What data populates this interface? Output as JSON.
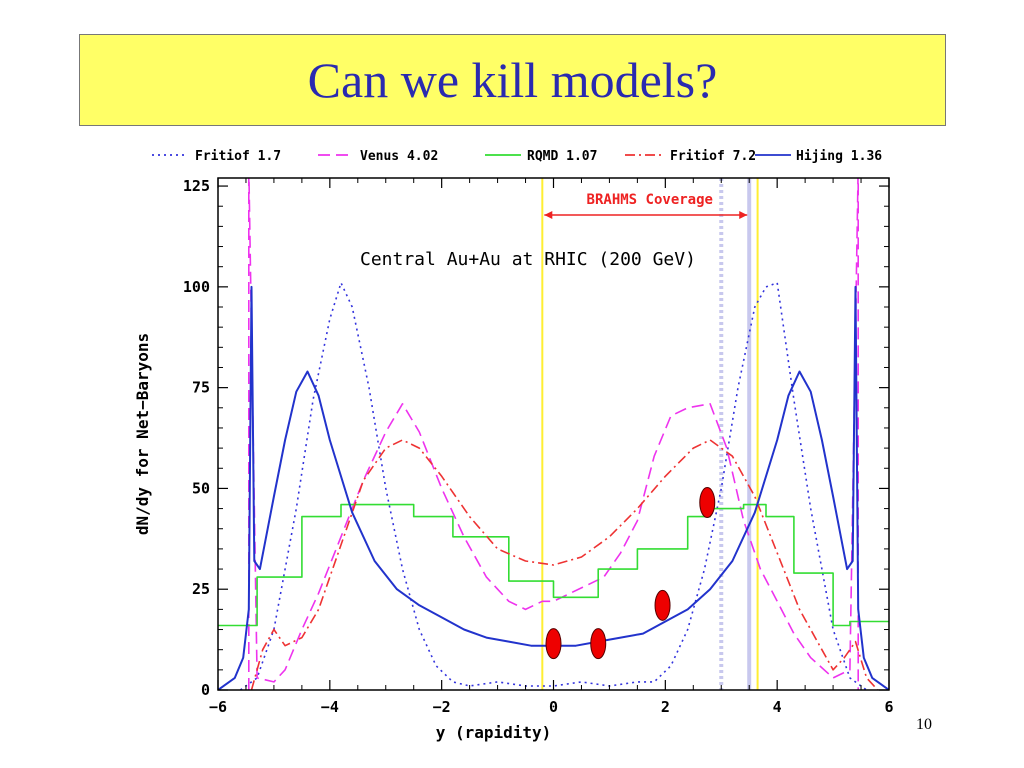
{
  "slide": {
    "title": "Can we kill models?",
    "page_number": "10"
  },
  "chart_data": {
    "type": "line",
    "title": "",
    "annotation": "Central Au+Au at RHIC (200 GeV)",
    "coverage_label": "BRAHMS Coverage",
    "coverage_range": [
      -0.2,
      3.5
    ],
    "xlabel": "y  (rapidity)",
    "ylabel": "dN/dy for Net−Baryons",
    "xlim": [
      -6,
      6
    ],
    "ylim": [
      0,
      127
    ],
    "xticks": [
      -6,
      -4,
      -2,
      0,
      2,
      4,
      6
    ],
    "xtick_labels": [
      "−6",
      "−4",
      "−2",
      "0",
      "2",
      "4",
      "6"
    ],
    "yticks": [
      0,
      25,
      50,
      75,
      100,
      125
    ],
    "ytick_labels": [
      "0",
      "25",
      "50",
      "75",
      "100",
      "125"
    ],
    "grid": false,
    "legend_position": "top",
    "series": [
      {
        "name": "Fritiof 1.7",
        "style": "dotted",
        "color": "#3333dd",
        "points": [
          [
            -5.6,
            0
          ],
          [
            -5.3,
            3
          ],
          [
            -5.0,
            15
          ],
          [
            -4.6,
            45
          ],
          [
            -4.3,
            72
          ],
          [
            -4.0,
            92
          ],
          [
            -3.8,
            101
          ],
          [
            -3.6,
            95
          ],
          [
            -3.3,
            75
          ],
          [
            -3.0,
            50
          ],
          [
            -2.7,
            30
          ],
          [
            -2.4,
            15
          ],
          [
            -2.1,
            6
          ],
          [
            -1.8,
            2
          ],
          [
            -1.5,
            1
          ],
          [
            -1.0,
            2
          ],
          [
            -0.5,
            1
          ],
          [
            0,
            1
          ],
          [
            0.5,
            2
          ],
          [
            1.0,
            1
          ],
          [
            1.5,
            2
          ],
          [
            1.8,
            2
          ],
          [
            2.1,
            6
          ],
          [
            2.4,
            15
          ],
          [
            2.7,
            30
          ],
          [
            3.0,
            50
          ],
          [
            3.3,
            75
          ],
          [
            3.6,
            95
          ],
          [
            3.8,
            100
          ],
          [
            4.0,
            101
          ],
          [
            4.3,
            72
          ],
          [
            4.6,
            45
          ],
          [
            5.0,
            15
          ],
          [
            5.3,
            3
          ],
          [
            5.6,
            0
          ]
        ]
      },
      {
        "name": "Venus 4.02",
        "style": "dashed",
        "color": "#ee33ee",
        "points": [
          [
            -5.45,
            0
          ],
          [
            -5.45,
            130
          ],
          [
            -5.3,
            3
          ],
          [
            -5.0,
            2
          ],
          [
            -4.8,
            5
          ],
          [
            -4.5,
            15
          ],
          [
            -4.2,
            24
          ],
          [
            -3.8,
            38
          ],
          [
            -3.4,
            52
          ],
          [
            -3.0,
            64
          ],
          [
            -2.7,
            71
          ],
          [
            -2.4,
            64
          ],
          [
            -2.0,
            50
          ],
          [
            -1.6,
            38
          ],
          [
            -1.2,
            28
          ],
          [
            -0.8,
            22
          ],
          [
            -0.5,
            20
          ],
          [
            -0.2,
            22
          ],
          [
            0,
            22
          ],
          [
            0.3,
            24
          ],
          [
            0.6,
            26
          ],
          [
            0.9,
            28
          ],
          [
            1.2,
            34
          ],
          [
            1.5,
            42
          ],
          [
            1.8,
            58
          ],
          [
            2.1,
            68
          ],
          [
            2.4,
            70
          ],
          [
            2.8,
            71
          ],
          [
            3.1,
            60
          ],
          [
            3.4,
            42
          ],
          [
            3.7,
            30
          ],
          [
            4.0,
            22
          ],
          [
            4.3,
            14
          ],
          [
            4.6,
            8
          ],
          [
            5.0,
            3
          ],
          [
            5.3,
            5
          ],
          [
            5.45,
            130
          ],
          [
            5.45,
            0
          ]
        ]
      },
      {
        "name": "RQMD 1.07",
        "style": "step",
        "color": "#33dd33",
        "points": [
          [
            -6,
            16
          ],
          [
            -5.3,
            16
          ],
          [
            -5.3,
            28
          ],
          [
            -4.5,
            28
          ],
          [
            -4.5,
            43
          ],
          [
            -3.8,
            43
          ],
          [
            -3.8,
            46
          ],
          [
            -2.5,
            46
          ],
          [
            -2.5,
            43
          ],
          [
            -1.8,
            43
          ],
          [
            -1.8,
            38
          ],
          [
            -0.8,
            38
          ],
          [
            -0.8,
            27
          ],
          [
            0,
            27
          ],
          [
            0,
            23
          ],
          [
            0.8,
            23
          ],
          [
            0.8,
            30
          ],
          [
            1.5,
            30
          ],
          [
            1.5,
            35
          ],
          [
            2.4,
            35
          ],
          [
            2.4,
            43
          ],
          [
            2.8,
            43
          ],
          [
            2.8,
            45
          ],
          [
            3.4,
            45
          ],
          [
            3.4,
            46
          ],
          [
            3.8,
            46
          ],
          [
            3.8,
            43
          ],
          [
            4.3,
            43
          ],
          [
            4.3,
            29
          ],
          [
            5.0,
            29
          ],
          [
            5.0,
            16
          ],
          [
            5.3,
            16
          ],
          [
            5.3,
            17
          ],
          [
            6,
            17
          ]
        ]
      },
      {
        "name": "Fritiof 7.2",
        "style": "dashdot",
        "color": "#ee3333",
        "points": [
          [
            -5.4,
            0
          ],
          [
            -5.2,
            10
          ],
          [
            -5.0,
            15
          ],
          [
            -4.8,
            11
          ],
          [
            -4.5,
            13
          ],
          [
            -4.2,
            20
          ],
          [
            -3.8,
            36
          ],
          [
            -3.4,
            52
          ],
          [
            -3.0,
            60
          ],
          [
            -2.7,
            62
          ],
          [
            -2.4,
            60
          ],
          [
            -2.0,
            53
          ],
          [
            -1.5,
            43
          ],
          [
            -1.0,
            35
          ],
          [
            -0.5,
            32
          ],
          [
            0,
            31
          ],
          [
            0.5,
            33
          ],
          [
            1.0,
            38
          ],
          [
            1.5,
            45
          ],
          [
            2.0,
            53
          ],
          [
            2.5,
            60
          ],
          [
            2.8,
            62
          ],
          [
            3.2,
            58
          ],
          [
            3.6,
            48
          ],
          [
            4.0,
            34
          ],
          [
            4.4,
            20
          ],
          [
            4.8,
            10
          ],
          [
            5.0,
            5
          ],
          [
            5.2,
            8
          ],
          [
            5.4,
            12
          ],
          [
            5.6,
            3
          ],
          [
            5.8,
            0
          ]
        ]
      },
      {
        "name": "Hijing 1.36",
        "style": "solid",
        "color": "#2233cc",
        "points": [
          [
            -6,
            0
          ],
          [
            -5.7,
            3
          ],
          [
            -5.55,
            8
          ],
          [
            -5.45,
            20
          ],
          [
            -5.4,
            100
          ],
          [
            -5.35,
            32
          ],
          [
            -5.25,
            30
          ],
          [
            -5.0,
            48
          ],
          [
            -4.8,
            62
          ],
          [
            -4.6,
            74
          ],
          [
            -4.4,
            79
          ],
          [
            -4.2,
            73
          ],
          [
            -4.0,
            62
          ],
          [
            -3.6,
            44
          ],
          [
            -3.2,
            32
          ],
          [
            -2.8,
            25
          ],
          [
            -2.4,
            21
          ],
          [
            -2.0,
            18
          ],
          [
            -1.6,
            15
          ],
          [
            -1.2,
            13
          ],
          [
            -0.8,
            12
          ],
          [
            -0.4,
            11
          ],
          [
            0,
            11
          ],
          [
            0.4,
            11
          ],
          [
            0.8,
            12
          ],
          [
            1.2,
            13
          ],
          [
            1.6,
            14
          ],
          [
            2.0,
            17
          ],
          [
            2.4,
            20
          ],
          [
            2.8,
            25
          ],
          [
            3.2,
            32
          ],
          [
            3.6,
            44
          ],
          [
            4.0,
            62
          ],
          [
            4.2,
            73
          ],
          [
            4.4,
            79
          ],
          [
            4.6,
            74
          ],
          [
            4.8,
            62
          ],
          [
            5.0,
            48
          ],
          [
            5.25,
            30
          ],
          [
            5.35,
            32
          ],
          [
            5.4,
            100
          ],
          [
            5.45,
            20
          ],
          [
            5.55,
            8
          ],
          [
            5.7,
            3
          ],
          [
            6,
            0
          ]
        ]
      }
    ],
    "data_markers": {
      "name": "BRAHMS data",
      "color": "#ee0000",
      "points": [
        [
          0,
          11.5
        ],
        [
          0.8,
          11.5
        ],
        [
          1.95,
          21
        ],
        [
          2.75,
          46.5
        ]
      ]
    },
    "vertical_lines": [
      {
        "x": -0.2,
        "color": "#ffee33",
        "style": "solid"
      },
      {
        "x": 3.0,
        "color": "#c8c8ee",
        "style": "dotted"
      },
      {
        "x": 3.5,
        "color": "#c8c8ee",
        "style": "solid"
      },
      {
        "x": 3.65,
        "color": "#ffee33",
        "style": "solid"
      }
    ]
  }
}
